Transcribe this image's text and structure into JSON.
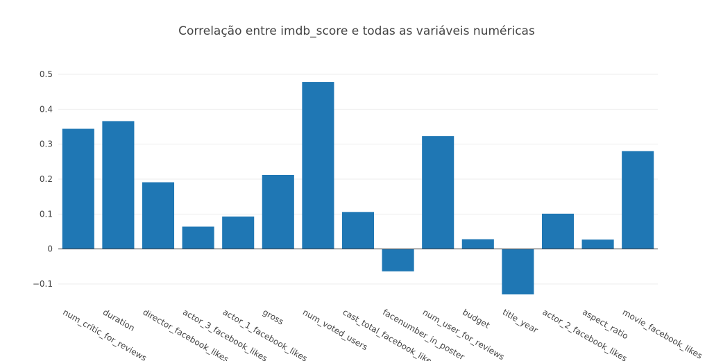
{
  "chart_data": {
    "type": "bar",
    "title": "Correlação entre imdb_score e todas as variáveis numéricas",
    "xlabel": "",
    "ylabel": "",
    "color": "#1f77b4",
    "ylim": [
      -0.15,
      0.52
    ],
    "yticks": [
      -0.1,
      0,
      0.1,
      0.2,
      0.3,
      0.4,
      0.5
    ],
    "ytick_labels": [
      "−0.1",
      "0",
      "0.1",
      "0.2",
      "0.3",
      "0.4",
      "0.5"
    ],
    "grid": true,
    "categories": [
      "num_critic_for_reviews",
      "duration",
      "director_facebook_likes",
      "actor_3_facebook_likes",
      "actor_1_facebook_likes",
      "gross",
      "num_voted_users",
      "cast_total_facebook_likes",
      "facenumber_in_poster",
      "num_user_for_reviews",
      "budget",
      "title_year",
      "actor_2_facebook_likes",
      "aspect_ratio",
      "movie_facebook_likes"
    ],
    "values": [
      0.344,
      0.366,
      0.191,
      0.064,
      0.093,
      0.212,
      0.478,
      0.106,
      -0.064,
      0.323,
      0.028,
      -0.13,
      0.101,
      0.027,
      0.28
    ]
  }
}
